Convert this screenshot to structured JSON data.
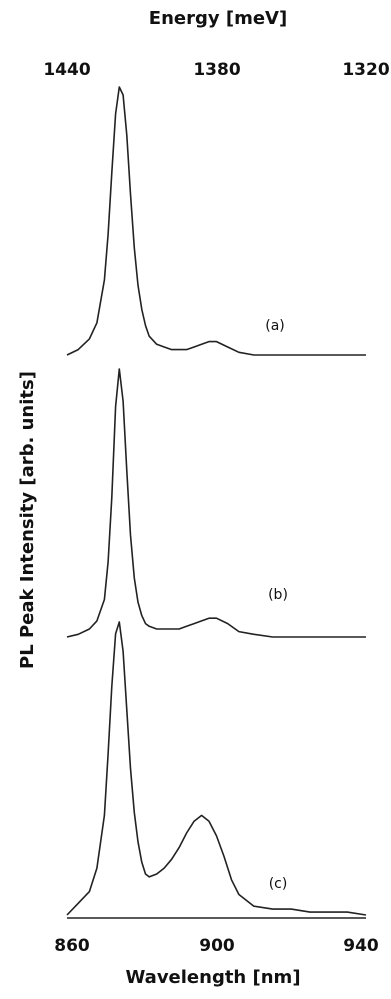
{
  "chart_data": {
    "type": "line",
    "title": "",
    "xlabel": "Wavelength [nm]",
    "ylabel": "PL Peak Intensity [arb. units]",
    "top_xlabel": "Energy [meV]",
    "xlim": [
      860,
      940
    ],
    "top_xlim": [
      1440,
      1320
    ],
    "xticks": [
      860,
      900,
      940
    ],
    "xtick_labels": [
      "860",
      "900",
      "940"
    ],
    "top_xticks": [
      1440,
      1380,
      1320
    ],
    "top_xtick_labels": [
      "1440",
      "1380",
      "1320"
    ],
    "grid": false,
    "legend": "none",
    "line_color": "#222222",
    "series": [
      {
        "name": "(a)",
        "x": [
          860,
          863,
          866,
          868,
          870,
          871,
          872,
          873,
          874,
          875,
          876,
          877,
          878,
          879,
          880,
          881,
          882,
          884,
          886,
          888,
          890,
          892,
          894,
          896,
          898,
          900,
          903,
          906,
          910,
          915,
          920,
          925,
          930,
          935,
          940
        ],
        "y": [
          0.0,
          0.02,
          0.06,
          0.12,
          0.28,
          0.45,
          0.68,
          0.9,
          1.0,
          0.97,
          0.82,
          0.6,
          0.4,
          0.26,
          0.17,
          0.11,
          0.07,
          0.04,
          0.03,
          0.02,
          0.02,
          0.02,
          0.03,
          0.04,
          0.05,
          0.05,
          0.03,
          0.01,
          0.0,
          0.0,
          0.0,
          0.0,
          0.0,
          0.0,
          0.0
        ]
      },
      {
        "name": "(b)",
        "x": [
          860,
          863,
          866,
          868,
          870,
          871,
          872,
          873,
          874,
          875,
          876,
          877,
          878,
          879,
          880,
          881,
          882,
          884,
          886,
          888,
          890,
          892,
          894,
          896,
          898,
          900,
          903,
          906,
          910,
          915,
          920,
          925,
          930,
          935,
          940
        ],
        "y": [
          0.0,
          0.01,
          0.03,
          0.06,
          0.14,
          0.28,
          0.52,
          0.86,
          1.0,
          0.88,
          0.62,
          0.38,
          0.22,
          0.13,
          0.08,
          0.05,
          0.04,
          0.03,
          0.03,
          0.03,
          0.03,
          0.04,
          0.05,
          0.06,
          0.07,
          0.07,
          0.05,
          0.02,
          0.01,
          0.0,
          0.0,
          0.0,
          0.0,
          0.0,
          0.0
        ]
      },
      {
        "name": "(c)",
        "x": [
          860,
          863,
          866,
          868,
          870,
          871,
          872,
          873,
          874,
          875,
          876,
          877,
          878,
          879,
          880,
          881,
          882,
          884,
          886,
          888,
          890,
          892,
          894,
          896,
          898,
          900,
          902,
          904,
          906,
          910,
          915,
          920,
          925,
          930,
          935,
          940
        ],
        "y": [
          0.0,
          0.04,
          0.08,
          0.16,
          0.34,
          0.55,
          0.78,
          0.96,
          1.0,
          0.9,
          0.7,
          0.5,
          0.35,
          0.25,
          0.18,
          0.14,
          0.13,
          0.14,
          0.16,
          0.19,
          0.23,
          0.28,
          0.32,
          0.34,
          0.32,
          0.27,
          0.2,
          0.12,
          0.07,
          0.03,
          0.02,
          0.02,
          0.01,
          0.01,
          0.01,
          0.0
        ]
      }
    ]
  }
}
